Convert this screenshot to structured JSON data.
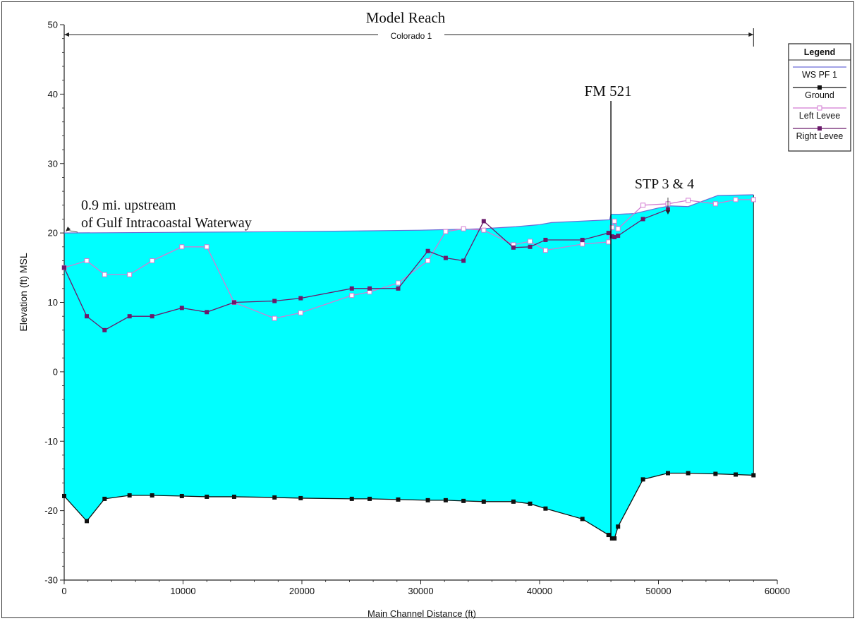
{
  "chart_data": {
    "type": "area",
    "title": "Model Reach",
    "reach_label": "Colorado 1",
    "xlabel": "Main Channel Distance (ft)",
    "ylabel": "Elevation (ft) MSL",
    "xlim": [
      0,
      60000
    ],
    "ylim": [
      -30,
      50
    ],
    "xticks": [
      0,
      10000,
      20000,
      30000,
      40000,
      50000,
      60000
    ],
    "yticks": [
      -30,
      -20,
      -10,
      0,
      10,
      20,
      30,
      40,
      50
    ],
    "legend": {
      "title": "Legend",
      "position": "top-right",
      "entries": [
        "WS  PF 1",
        "Ground",
        "Left Levee",
        "Right Levee"
      ]
    },
    "colors": {
      "water_fill": "#00ffff",
      "ws_line": "#6b6bd6",
      "ground": "#111111",
      "left_levee": "#d27bd2",
      "right_levee": "#6b1a6b"
    },
    "annotations": [
      {
        "lines": [
          "0.9 mi. upstream",
          "of Gulf Intracoastal Waterway"
        ],
        "x": 0,
        "y": 20
      },
      {
        "lines": [
          "FM 521"
        ],
        "x": 46000,
        "y": 42
      },
      {
        "lines": [
          "STP 3 & 4"
        ],
        "x": 50800,
        "y": 24
      }
    ],
    "series": [
      {
        "name": "WS  PF 1",
        "x": [
          0,
          10000,
          20000,
          30000,
          35000,
          38000,
          40000,
          41000,
          45900,
          46000,
          46700,
          48000,
          50000,
          51000,
          52500,
          55000,
          58000
        ],
        "values": [
          20,
          20.1,
          20.2,
          20.4,
          20.6,
          20.9,
          21.2,
          21.5,
          21.9,
          22.7,
          22.7,
          22.8,
          23.6,
          23.9,
          23.8,
          25.4,
          25.5
        ]
      },
      {
        "name": "Ground",
        "x": [
          0,
          1900,
          3400,
          5500,
          7400,
          9900,
          12000,
          14300,
          17700,
          19900,
          24200,
          25700,
          28100,
          30600,
          32100,
          33600,
          35300,
          37800,
          39200,
          40500,
          43600,
          45800,
          46100,
          46300,
          46600,
          48700,
          50800,
          52500,
          54800,
          56500,
          58000
        ],
        "values": [
          -17.9,
          -21.5,
          -18.3,
          -17.8,
          -17.8,
          -17.9,
          -18,
          -18,
          -18.1,
          -18.2,
          -18.3,
          -18.3,
          -18.4,
          -18.5,
          -18.5,
          -18.6,
          -18.7,
          -18.7,
          -19,
          -19.7,
          -21.2,
          -23.5,
          -24,
          -24,
          -22.3,
          -15.5,
          -14.6,
          -14.6,
          -14.7,
          -14.8,
          -14.9
        ]
      },
      {
        "name": "Left Levee",
        "x": [
          0,
          1900,
          3400,
          5500,
          7400,
          9900,
          12000,
          14300,
          17700,
          19900,
          24200,
          25700,
          28100,
          30600,
          32100,
          33600,
          35300,
          37800,
          39200,
          40500,
          43600,
          45800,
          46100,
          46300,
          46600,
          48700,
          50800,
          52500,
          54800,
          56500,
          58000
        ],
        "values": [
          15,
          16,
          14,
          14,
          16,
          18,
          18,
          10,
          7.7,
          8.5,
          11,
          11.5,
          12.8,
          16,
          20.2,
          20.6,
          20.4,
          18.3,
          18.8,
          17.5,
          18.4,
          18.7,
          20.8,
          21.7,
          20.6,
          24,
          24.2,
          24.7,
          24.2,
          24.8,
          24.8
        ]
      },
      {
        "name": "Right Levee",
        "x": [
          0,
          1900,
          3400,
          5500,
          7400,
          9900,
          12000,
          14300,
          17700,
          19900,
          24200,
          25700,
          28100,
          30600,
          32100,
          33600,
          35300,
          37800,
          39200,
          40500,
          43600,
          45800,
          46100,
          46300,
          46600,
          48700,
          50800
        ],
        "values": [
          15,
          8,
          6,
          8,
          8,
          9.2,
          8.6,
          10,
          10.2,
          10.6,
          12,
          12,
          12,
          17.4,
          16.4,
          16,
          21.7,
          17.9,
          18,
          19,
          19,
          20,
          19.5,
          19.4,
          19.6,
          22,
          23.4
        ]
      }
    ]
  }
}
